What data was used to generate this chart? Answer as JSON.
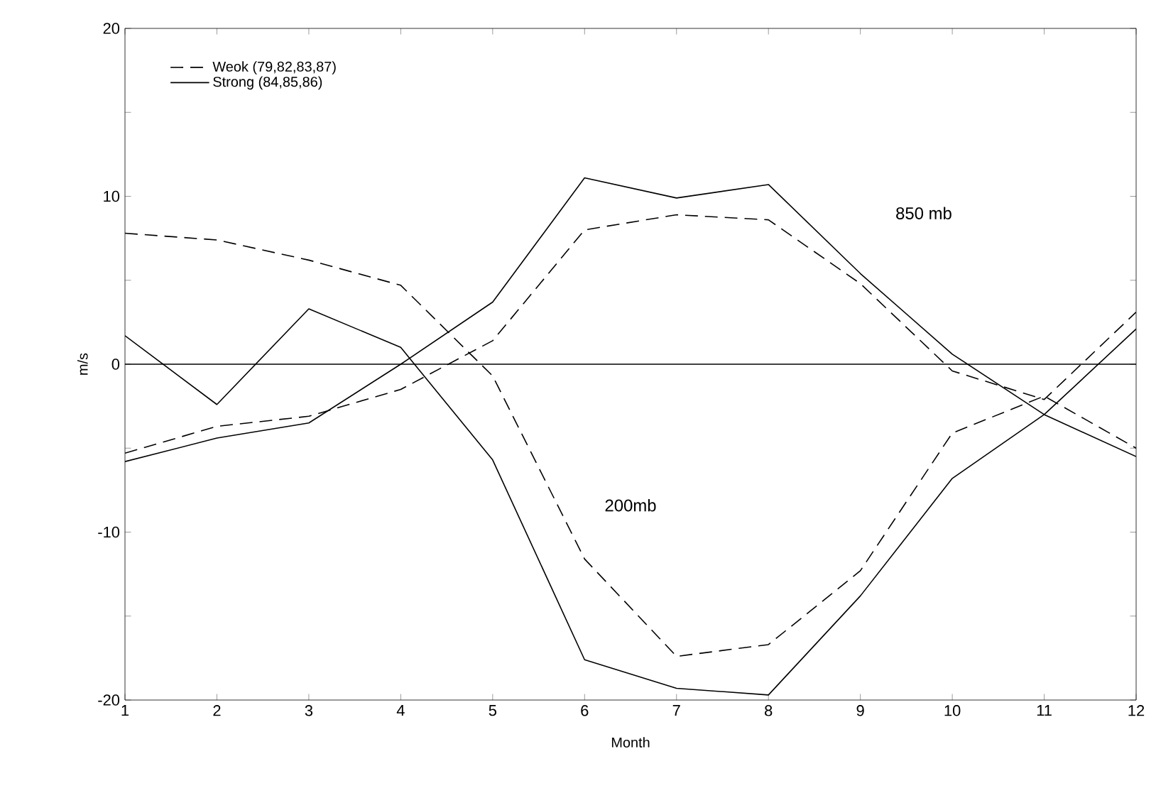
{
  "chart_data": {
    "type": "line",
    "xlabel": "Month",
    "ylabel": "m/s",
    "x": [
      1,
      2,
      3,
      4,
      5,
      6,
      7,
      8,
      9,
      10,
      11,
      12
    ],
    "xlim": [
      1,
      12
    ],
    "xticks": [
      1,
      2,
      3,
      4,
      5,
      6,
      7,
      8,
      9,
      10,
      11,
      12
    ],
    "ylim": [
      -20,
      20
    ],
    "yticks": [
      -20,
      {
        "value": -15,
        "label": null
      },
      -10,
      {
        "value": -5,
        "label": null
      },
      0,
      {
        "value": 5,
        "label": null
      },
      10,
      {
        "value": 15,
        "label": null
      },
      20
    ],
    "series": [
      {
        "name": "Weok (79,82,83,87)",
        "color": "#000000",
        "line_style": "dashed",
        "values": [
          -5.3,
          -3.7,
          -3.1,
          -1.5,
          1.4,
          8.0,
          8.9,
          8.6,
          4.8,
          -0.4,
          -2.1,
          3.1
        ]
      },
      {
        "name": "Strong (84,85,86)",
        "color": "#000000",
        "line_style": "solid",
        "values": [
          -5.8,
          -4.4,
          -3.5,
          0.0,
          3.7,
          11.1,
          9.9,
          10.7,
          5.4,
          0.6,
          -3.0,
          2.1
        ]
      },
      {
        "color": "#000000",
        "line_style": "dashed",
        "values": [
          7.8,
          7.4,
          6.2,
          4.7,
          -0.7,
          -11.6,
          -17.4,
          -16.7,
          -12.3,
          -4.1,
          -1.9,
          -5.0
        ]
      },
      {
        "color": "#000000",
        "line_style": "solid",
        "values": [
          1.7,
          -2.4,
          3.3,
          1.0,
          -5.7,
          -17.6,
          -19.3,
          -19.7,
          -13.8,
          -6.8,
          -3.0,
          -5.5
        ]
      }
    ],
    "ref_lines": [
      {
        "axis": "y",
        "value": 0,
        "color": "#000000"
      }
    ],
    "annotations": [
      "850 mb",
      "200mb"
    ],
    "legend": "top left",
    "grid": false,
    "marker": "none"
  }
}
